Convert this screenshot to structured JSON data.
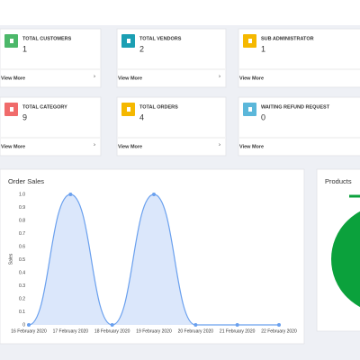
{
  "cards": [
    {
      "label": "TOTAL CUSTOMERS",
      "value": 1,
      "link": "View More",
      "color": "#4cb86a"
    },
    {
      "label": "TOTAL VENDORS",
      "value": 2,
      "link": "View More",
      "color": "#1b9fb3"
    },
    {
      "label": "SUB ADMINISTRATOR",
      "value": 1,
      "link": "View More",
      "color": "#f5b800"
    },
    {
      "label": "TOTAL CATEGORY",
      "value": 9,
      "link": "View More",
      "color": "#f06b6b"
    },
    {
      "label": "TOTAL ORDERS",
      "value": 4,
      "link": "View More",
      "color": "#f5b800"
    },
    {
      "label": "WAITING REFUND REQUEST",
      "value": 0,
      "link": "View More",
      "color": "#5bb7da"
    }
  ],
  "order_sales": {
    "type": "line",
    "title": "Order Sales",
    "y_label": "Sales",
    "categories": [
      "16 February 2020",
      "17 February 2020",
      "18 February 2020",
      "19 February 2020",
      "20 February 2020",
      "21 February 2020",
      "22 February 2020"
    ],
    "values": [
      0,
      1,
      0,
      1,
      0,
      0,
      0
    ],
    "color": "#6aa0ee",
    "fill": "#dbe7fb",
    "ylim": [
      0,
      1
    ],
    "yticks": [
      0,
      0.1,
      0.2,
      0.3,
      0.4,
      0.5,
      0.6,
      0.7,
      0.8,
      0.9,
      {
        "value": 1,
        "label": "1.0"
      }
    ]
  },
  "products": {
    "title": "Products",
    "color": "#0ba13c"
  }
}
